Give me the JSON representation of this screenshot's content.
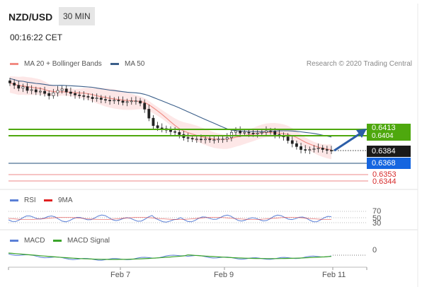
{
  "header": {
    "pair": "NZD/USD",
    "timeframe": "30 MIN",
    "time": "00:16:22 CET"
  },
  "legend": {
    "ma20": {
      "label": "MA 20 + Bollinger Bands",
      "color": "#f28b82"
    },
    "ma50": {
      "label": "MA 50",
      "color": "#3b5f8a"
    },
    "rsi": {
      "label": "RSI",
      "color": "#5a7fd6"
    },
    "rsi9": {
      "label": "9MA",
      "color": "#e02020"
    },
    "macd": {
      "label": "MACD",
      "color": "#5a7fd6"
    },
    "signal": {
      "label": "MACD Signal",
      "color": "#3aa42a"
    }
  },
  "credit": "Research © 2020 Trading Central",
  "levels": {
    "resistance1": {
      "value": "0.6413",
      "color": "#4ea80e"
    },
    "resistance2": {
      "value": "0.6404",
      "color": "#4ea80e"
    },
    "current": {
      "value": "0.6384",
      "color": "#1a1a1a"
    },
    "pivot": {
      "value": "0.6368",
      "color": "#1565e0"
    },
    "support1": {
      "value": "0.6353",
      "color": "#d62a2a"
    },
    "support2": {
      "value": "0.6344",
      "color": "#d62a2a"
    }
  },
  "rsi_axis": {
    "top": "70",
    "mid": "50",
    "bottom": "30"
  },
  "macd_axis": {
    "zero": "0"
  },
  "chart_data": {
    "type": "line",
    "x_ticks": [
      "Feb 7",
      "Feb 9",
      "Feb 11"
    ],
    "y_levels": [
      0.6413,
      0.6404,
      0.6384,
      0.6368,
      0.6353,
      0.6344
    ],
    "price_close": [
      0.6475,
      0.6472,
      0.6468,
      0.647,
      0.6465,
      0.6466,
      0.6463,
      0.6464,
      0.6461,
      0.6458,
      0.6462,
      0.6465,
      0.6467,
      0.6463,
      0.6461,
      0.6459,
      0.6458,
      0.6457,
      0.6456,
      0.6454,
      0.6455,
      0.6453,
      0.6452,
      0.6451,
      0.6452,
      0.6451,
      0.6449,
      0.645,
      0.6451,
      0.6451,
      0.6448,
      0.644,
      0.6428,
      0.6418,
      0.6415,
      0.6414,
      0.6412,
      0.641,
      0.6409,
      0.6406,
      0.6402,
      0.6401,
      0.64,
      0.64,
      0.6399,
      0.64,
      0.6399,
      0.6399,
      0.64,
      0.64,
      0.6402,
      0.6409,
      0.6411,
      0.6408,
      0.6409,
      0.6408,
      0.6407,
      0.6408,
      0.6409,
      0.6411,
      0.641,
      0.6406,
      0.6405,
      0.6403,
      0.6398,
      0.6394,
      0.639,
      0.6386,
      0.6385,
      0.6386,
      0.6387,
      0.6388,
      0.6386,
      0.6385,
      0.6384
    ],
    "trend_arrow": "up",
    "ylim": [
      0.633,
      0.649
    ]
  }
}
